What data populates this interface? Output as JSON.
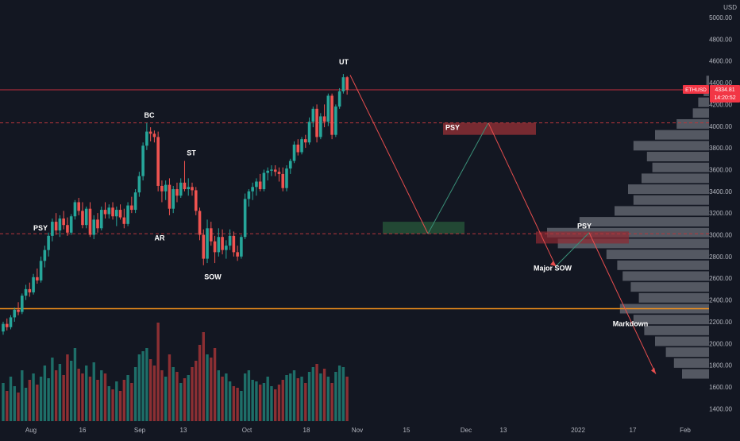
{
  "chart_data": {
    "type": "candlestick",
    "symbol": "ETHUSD",
    "currency": "USD",
    "last_price": "4334.81",
    "countdown": "14:20:52",
    "ylim": [
      1300,
      5150
    ],
    "y_ticks": [
      "5000.00",
      "4800.00",
      "4600.00",
      "4400.00",
      "4200.00",
      "4000.00",
      "3800.00",
      "3600.00",
      "3400.00",
      "3200.00",
      "3000.00",
      "2800.00",
      "2600.00",
      "2400.00",
      "2200.00",
      "2000.00",
      "1800.00",
      "1600.00",
      "1400.00"
    ],
    "x_ticks": [
      "Aug",
      "16",
      "Sep",
      "13",
      "Oct",
      "18",
      "Nov",
      "15",
      "Dec",
      "13",
      "2022",
      "17",
      "Feb"
    ],
    "candles": [
      {
        "o": 2110,
        "h": 2200,
        "l": 2080,
        "c": 2180
      },
      {
        "o": 2180,
        "h": 2230,
        "l": 2120,
        "c": 2150
      },
      {
        "o": 2150,
        "h": 2260,
        "l": 2130,
        "c": 2240
      },
      {
        "o": 2240,
        "h": 2330,
        "l": 2200,
        "c": 2310
      },
      {
        "o": 2310,
        "h": 2380,
        "l": 2260,
        "c": 2290
      },
      {
        "o": 2290,
        "h": 2460,
        "l": 2270,
        "c": 2440
      },
      {
        "o": 2440,
        "h": 2540,
        "l": 2400,
        "c": 2500
      },
      {
        "o": 2500,
        "h": 2560,
        "l": 2430,
        "c": 2470
      },
      {
        "o": 2470,
        "h": 2640,
        "l": 2450,
        "c": 2610
      },
      {
        "o": 2610,
        "h": 2690,
        "l": 2550,
        "c": 2580
      },
      {
        "o": 2580,
        "h": 2800,
        "l": 2560,
        "c": 2760
      },
      {
        "o": 2760,
        "h": 2900,
        "l": 2700,
        "c": 2860
      },
      {
        "o": 2860,
        "h": 3020,
        "l": 2800,
        "c": 2990
      },
      {
        "o": 2990,
        "h": 3150,
        "l": 2940,
        "c": 3120
      },
      {
        "o": 3120,
        "h": 3200,
        "l": 3000,
        "c": 3040
      },
      {
        "o": 3040,
        "h": 3180,
        "l": 2980,
        "c": 3150
      },
      {
        "o": 3150,
        "h": 3220,
        "l": 3050,
        "c": 3090
      },
      {
        "o": 3090,
        "h": 3160,
        "l": 2990,
        "c": 3020
      },
      {
        "o": 3020,
        "h": 3190,
        "l": 3000,
        "c": 3170
      },
      {
        "o": 3170,
        "h": 3320,
        "l": 3140,
        "c": 3300
      },
      {
        "o": 3300,
        "h": 3340,
        "l": 3180,
        "c": 3220
      },
      {
        "o": 3220,
        "h": 3300,
        "l": 3060,
        "c": 3090
      },
      {
        "o": 3090,
        "h": 3260,
        "l": 3060,
        "c": 3240
      },
      {
        "o": 3240,
        "h": 3300,
        "l": 2980,
        "c": 3000
      },
      {
        "o": 3000,
        "h": 3180,
        "l": 2960,
        "c": 3140
      },
      {
        "o": 3140,
        "h": 3200,
        "l": 3020,
        "c": 3060
      },
      {
        "o": 3060,
        "h": 3260,
        "l": 3040,
        "c": 3230
      },
      {
        "o": 3230,
        "h": 3300,
        "l": 3150,
        "c": 3190
      },
      {
        "o": 3190,
        "h": 3280,
        "l": 3150,
        "c": 3250
      },
      {
        "o": 3250,
        "h": 3300,
        "l": 3140,
        "c": 3170
      },
      {
        "o": 3170,
        "h": 3260,
        "l": 3080,
        "c": 3230
      },
      {
        "o": 3230,
        "h": 3280,
        "l": 3140,
        "c": 3160
      },
      {
        "o": 3160,
        "h": 3240,
        "l": 3060,
        "c": 3100
      },
      {
        "o": 3100,
        "h": 3300,
        "l": 3080,
        "c": 3270
      },
      {
        "o": 3270,
        "h": 3350,
        "l": 3200,
        "c": 3230
      },
      {
        "o": 3230,
        "h": 3420,
        "l": 3200,
        "c": 3390
      },
      {
        "o": 3390,
        "h": 3580,
        "l": 3350,
        "c": 3540
      },
      {
        "o": 3540,
        "h": 3850,
        "l": 3500,
        "c": 3820
      },
      {
        "o": 3820,
        "h": 4030,
        "l": 3780,
        "c": 3950
      },
      {
        "o": 3950,
        "h": 3990,
        "l": 3860,
        "c": 3930
      },
      {
        "o": 3930,
        "h": 3960,
        "l": 3850,
        "c": 3900
      },
      {
        "o": 3900,
        "h": 3950,
        "l": 3400,
        "c": 3450
      },
      {
        "o": 3450,
        "h": 3500,
        "l": 3300,
        "c": 3400
      },
      {
        "o": 3400,
        "h": 3500,
        "l": 3320,
        "c": 3460
      },
      {
        "o": 3460,
        "h": 3520,
        "l": 3180,
        "c": 3240
      },
      {
        "o": 3240,
        "h": 3450,
        "l": 3200,
        "c": 3420
      },
      {
        "o": 3420,
        "h": 3480,
        "l": 3300,
        "c": 3360
      },
      {
        "o": 3360,
        "h": 3520,
        "l": 3340,
        "c": 3480
      },
      {
        "o": 3480,
        "h": 3680,
        "l": 3400,
        "c": 3420
      },
      {
        "o": 3420,
        "h": 3520,
        "l": 3360,
        "c": 3440
      },
      {
        "o": 3440,
        "h": 3480,
        "l": 3360,
        "c": 3410
      },
      {
        "o": 3410,
        "h": 3440,
        "l": 3180,
        "c": 3220
      },
      {
        "o": 3220,
        "h": 3250,
        "l": 2950,
        "c": 3000
      },
      {
        "o": 3000,
        "h": 3050,
        "l": 2720,
        "c": 2780
      },
      {
        "o": 2780,
        "h": 3140,
        "l": 2740,
        "c": 3060
      },
      {
        "o": 3060,
        "h": 3120,
        "l": 2900,
        "c": 2940
      },
      {
        "o": 2940,
        "h": 2990,
        "l": 2740,
        "c": 2840
      },
      {
        "o": 2840,
        "h": 3060,
        "l": 2800,
        "c": 2980
      },
      {
        "o": 2980,
        "h": 3050,
        "l": 2820,
        "c": 2860
      },
      {
        "o": 2860,
        "h": 2950,
        "l": 2780,
        "c": 2900
      },
      {
        "o": 2900,
        "h": 3050,
        "l": 2860,
        "c": 2990
      },
      {
        "o": 2990,
        "h": 3030,
        "l": 2800,
        "c": 2840
      },
      {
        "o": 2840,
        "h": 2900,
        "l": 2760,
        "c": 2800
      },
      {
        "o": 2800,
        "h": 3000,
        "l": 2780,
        "c": 2980
      },
      {
        "o": 2980,
        "h": 3380,
        "l": 2960,
        "c": 3330
      },
      {
        "o": 3330,
        "h": 3420,
        "l": 3260,
        "c": 3400
      },
      {
        "o": 3400,
        "h": 3480,
        "l": 3320,
        "c": 3440
      },
      {
        "o": 3440,
        "h": 3520,
        "l": 3360,
        "c": 3490
      },
      {
        "o": 3490,
        "h": 3560,
        "l": 3400,
        "c": 3420
      },
      {
        "o": 3420,
        "h": 3600,
        "l": 3400,
        "c": 3570
      },
      {
        "o": 3570,
        "h": 3620,
        "l": 3500,
        "c": 3590
      },
      {
        "o": 3590,
        "h": 3640,
        "l": 3540,
        "c": 3600
      },
      {
        "o": 3600,
        "h": 3640,
        "l": 3540,
        "c": 3580
      },
      {
        "o": 3580,
        "h": 3620,
        "l": 3490,
        "c": 3560
      },
      {
        "o": 3560,
        "h": 3620,
        "l": 3400,
        "c": 3430
      },
      {
        "o": 3430,
        "h": 3640,
        "l": 3400,
        "c": 3610
      },
      {
        "o": 3610,
        "h": 3700,
        "l": 3560,
        "c": 3680
      },
      {
        "o": 3680,
        "h": 3860,
        "l": 3660,
        "c": 3830
      },
      {
        "o": 3830,
        "h": 3880,
        "l": 3730,
        "c": 3760
      },
      {
        "o": 3760,
        "h": 3900,
        "l": 3740,
        "c": 3880
      },
      {
        "o": 3880,
        "h": 3920,
        "l": 3800,
        "c": 3850
      },
      {
        "o": 3850,
        "h": 4080,
        "l": 3830,
        "c": 4040
      },
      {
        "o": 4040,
        "h": 4180,
        "l": 3990,
        "c": 4160
      },
      {
        "o": 4160,
        "h": 4200,
        "l": 3850,
        "c": 3900
      },
      {
        "o": 3900,
        "h": 4120,
        "l": 3880,
        "c": 4090
      },
      {
        "o": 4090,
        "h": 4200,
        "l": 3990,
        "c": 4040
      },
      {
        "o": 4040,
        "h": 4300,
        "l": 4000,
        "c": 4280
      },
      {
        "o": 4280,
        "h": 4300,
        "l": 3880,
        "c": 3920
      },
      {
        "o": 3920,
        "h": 4200,
        "l": 3900,
        "c": 4180
      },
      {
        "o": 4180,
        "h": 4350,
        "l": 4160,
        "c": 4320
      },
      {
        "o": 4320,
        "h": 4480,
        "l": 4300,
        "c": 4450
      },
      {
        "o": 4450,
        "h": 4460,
        "l": 4290,
        "c": 4334.81
      }
    ],
    "volume": [
      120,
      95,
      140,
      110,
      90,
      160,
      105,
      130,
      150,
      115,
      140,
      175,
      135,
      200,
      160,
      180,
      145,
      210,
      190,
      230,
      165,
      150,
      175,
      140,
      185,
      130,
      160,
      150,
      110,
      100,
      125,
      95,
      130,
      145,
      120,
      170,
      210,
      220,
      230,
      195,
      175,
      310,
      160,
      140,
      210,
      170,
      155,
      120,
      135,
      145,
      170,
      190,
      240,
      280,
      210,
      200,
      230,
      160,
      140,
      150,
      125,
      110,
      105,
      95,
      150,
      160,
      130,
      125,
      115,
      120,
      140,
      110,
      100,
      115,
      130,
      145,
      150,
      160,
      135,
      140,
      120,
      155,
      170,
      180,
      150,
      165,
      140,
      120,
      155,
      175,
      170,
      140
    ],
    "profile": [
      [
        1720,
        100
      ],
      [
        1820,
        130
      ],
      [
        1920,
        160
      ],
      [
        2020,
        200
      ],
      [
        2120,
        240
      ],
      [
        2220,
        280
      ],
      [
        2320,
        330
      ],
      [
        2420,
        260
      ],
      [
        2520,
        290
      ],
      [
        2620,
        320
      ],
      [
        2720,
        340
      ],
      [
        2820,
        380
      ],
      [
        2920,
        560
      ],
      [
        3020,
        600
      ],
      [
        3120,
        480
      ],
      [
        3220,
        350
      ],
      [
        3320,
        280
      ],
      [
        3420,
        300
      ],
      [
        3520,
        250
      ],
      [
        3620,
        210
      ],
      [
        3720,
        230
      ],
      [
        3820,
        280
      ],
      [
        3920,
        200
      ],
      [
        4020,
        120
      ],
      [
        4120,
        60
      ],
      [
        4220,
        40
      ],
      [
        4320,
        20
      ],
      [
        4420,
        10
      ]
    ],
    "horizontal_levels": [
      {
        "name": "resistance",
        "price": 4030,
        "color": "#b7373c",
        "style": "dashed"
      },
      {
        "name": "support",
        "price": 3010,
        "color": "#b7373c",
        "style": "dashed"
      },
      {
        "name": "last-price",
        "price": 4334.81,
        "color": "#f23645",
        "style": "solid"
      },
      {
        "name": "base",
        "price": 2320,
        "color": "#f7931a",
        "style": "solid"
      }
    ],
    "zones": [
      {
        "name": "psy-zone-top",
        "price_low": 3920,
        "price_high": 4030,
        "color": "#a33338"
      },
      {
        "name": "demand-zone",
        "price_low": 3010,
        "price_high": 3120,
        "color": "#2a5e3c"
      },
      {
        "name": "psy-zone-mid",
        "price_low": 2920,
        "price_high": 3030,
        "color": "#8f2a32"
      }
    ],
    "annotations": [
      {
        "name": "label-psy-left",
        "text": "PSY",
        "price": 3040,
        "bar": 3
      },
      {
        "name": "label-bc",
        "text": "BC",
        "price": 4080,
        "bar": 38
      },
      {
        "name": "label-ar",
        "text": "AR",
        "price": 2950,
        "bar": 41
      },
      {
        "name": "label-st",
        "text": "ST",
        "price": 3730,
        "bar": 49
      },
      {
        "name": "label-sow-left",
        "text": "SOW",
        "price": 2590,
        "bar": 54
      },
      {
        "name": "label-ut",
        "text": "UT",
        "price": 4570,
        "bar": 89
      },
      {
        "name": "label-psy-top",
        "text": "PSY",
        "price": 3965,
        "bar": 117
      },
      {
        "name": "label-major-sow",
        "text": "Major SOW",
        "price": 2670,
        "bar": 139
      },
      {
        "name": "label-psy-right",
        "text": "PSY",
        "price": 3060,
        "bar": 150
      },
      {
        "name": "label-markdown",
        "text": "Markdown",
        "price": 2160,
        "bar": 163
      }
    ],
    "projection": [
      {
        "bar": 91,
        "price": 4470
      },
      {
        "bar": 110,
        "price": 3010
      },
      {
        "bar": 126,
        "price": 4030
      },
      {
        "bar": 143,
        "price": 2710
      },
      {
        "bar": 152,
        "price": 3020
      },
      {
        "bar": 170,
        "price": 1720
      }
    ],
    "colors": {
      "up": "#26a69a",
      "down": "#ef5350",
      "vol_up": "#1e6e68",
      "vol_down": "#8c2f33",
      "profile": "#8b8e98",
      "projection_down": "#e84e4e",
      "projection_up": "#3a8f78",
      "bg": "#131722",
      "axis_text": "#b2b5be"
    }
  }
}
